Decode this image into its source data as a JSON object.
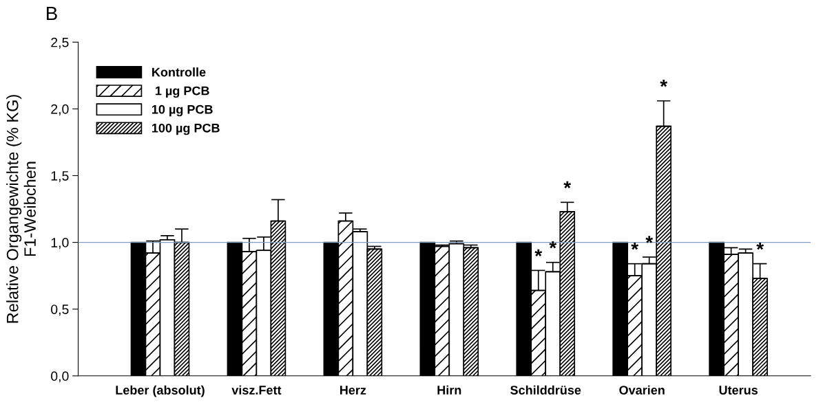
{
  "chart_data": {
    "type": "bar",
    "title": "B",
    "ylabel": "Relative Organgewichte (% KG)\nF1-Weibchen",
    "categories": [
      "Leber (absolut)",
      "visz.Fett",
      "Herz",
      "Hirn",
      "Schilddrüse",
      "Ovarien",
      "Uterus"
    ],
    "series": [
      {
        "name": "Kontrolle",
        "color": "#000000",
        "values": [
          1.0,
          1.0,
          1.0,
          1.0,
          1.0,
          1.0,
          1.0
        ]
      },
      {
        "name": " 1 µg PCB",
        "color": "#ffffff",
        "values": [
          0.92,
          0.93,
          1.16,
          0.97,
          0.64,
          0.75,
          0.91
        ],
        "errors": [
          [
            0.92,
            1.01
          ],
          [
            0.93,
            1.03
          ],
          [
            1.16,
            1.22
          ],
          [
            0.97,
            0.98
          ],
          [
            0.64,
            0.79
          ],
          [
            0.75,
            0.84
          ],
          [
            0.91,
            0.96
          ]
        ],
        "value_labels": [
          null,
          null,
          null,
          null,
          "*",
          "*",
          null
        ]
      },
      {
        "name": "10 µg PCB",
        "color": "#ffffff",
        "values": [
          1.02,
          0.94,
          1.08,
          0.99,
          0.78,
          0.84,
          0.92
        ],
        "errors": [
          [
            1.02,
            1.05
          ],
          [
            0.94,
            1.04
          ],
          [
            1.08,
            1.1
          ],
          [
            0.99,
            1.01
          ],
          [
            0.78,
            0.85
          ],
          [
            0.84,
            0.89
          ],
          [
            0.92,
            0.95
          ]
        ],
        "value_labels": [
          null,
          null,
          null,
          null,
          "*",
          "*",
          null
        ]
      },
      {
        "name": "100 µg PCB",
        "color": "#ffffff",
        "values": [
          1.0,
          1.16,
          0.95,
          0.96,
          1.23,
          1.87,
          0.73
        ],
        "errors": [
          [
            1.0,
            1.1
          ],
          [
            1.16,
            1.32
          ],
          [
            0.95,
            0.97
          ],
          [
            0.96,
            0.98
          ],
          [
            1.23,
            1.3
          ],
          [
            1.87,
            2.06
          ],
          [
            0.73,
            0.84
          ]
        ],
        "value_labels": [
          null,
          null,
          null,
          null,
          "*",
          "*",
          "*"
        ]
      }
    ],
    "ylim": [
      0,
      2.5
    ],
    "yticks": [
      {
        "value": 0,
        "label": "0,0"
      },
      {
        "value": 0.5,
        "label": "0,5"
      },
      {
        "value": 1.0,
        "label": "1,0"
      },
      {
        "value": 1.5,
        "label": "1,5"
      },
      {
        "value": 2.0,
        "label": "2,0"
      },
      {
        "value": 2.5,
        "label": "2,5"
      }
    ],
    "ref_lines": [
      {
        "axis": "y",
        "value": 1.0,
        "color": "#7f9cc0"
      }
    ],
    "legend": "top left",
    "grid": false
  }
}
